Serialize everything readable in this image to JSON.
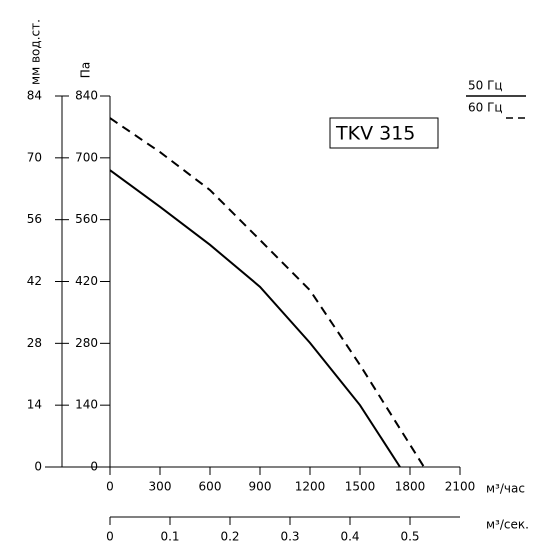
{
  "chart_data": {
    "type": "line",
    "y_label": "Па",
    "y2_label": "мм вод.ст.",
    "x_label": "м³/час",
    "x2_label": "м³/сек.",
    "annotation": "TKV 315",
    "xlim": [
      0,
      2100
    ],
    "xticks": [
      0,
      300,
      600,
      900,
      1200,
      1500,
      1800,
      2100
    ],
    "x2lim": [
      0,
      0.5833
    ],
    "x2ticks": [
      0,
      0.1,
      0.2,
      0.3,
      0.4,
      0.5
    ],
    "ylim": [
      0,
      840
    ],
    "yticks": [
      0,
      140,
      280,
      420,
      560,
      700,
      840
    ],
    "y2lim": [
      0,
      84
    ],
    "y2ticks": [
      0,
      14,
      28,
      42,
      56,
      70,
      84
    ],
    "series": [
      {
        "name": "50 Гц",
        "color": "#000000",
        "linestyle": "solid",
        "x": [
          0,
          300,
          600,
          900,
          1200,
          1500,
          1740
        ],
        "values": [
          672,
          589,
          503,
          408,
          281,
          140,
          0
        ]
      },
      {
        "name": "60 Гц",
        "color": "#000000",
        "linestyle": "dashed",
        "x": [
          0,
          300,
          600,
          900,
          1200,
          1500,
          1884
        ],
        "values": [
          790,
          713,
          627,
          514,
          400,
          231,
          0
        ]
      }
    ]
  }
}
